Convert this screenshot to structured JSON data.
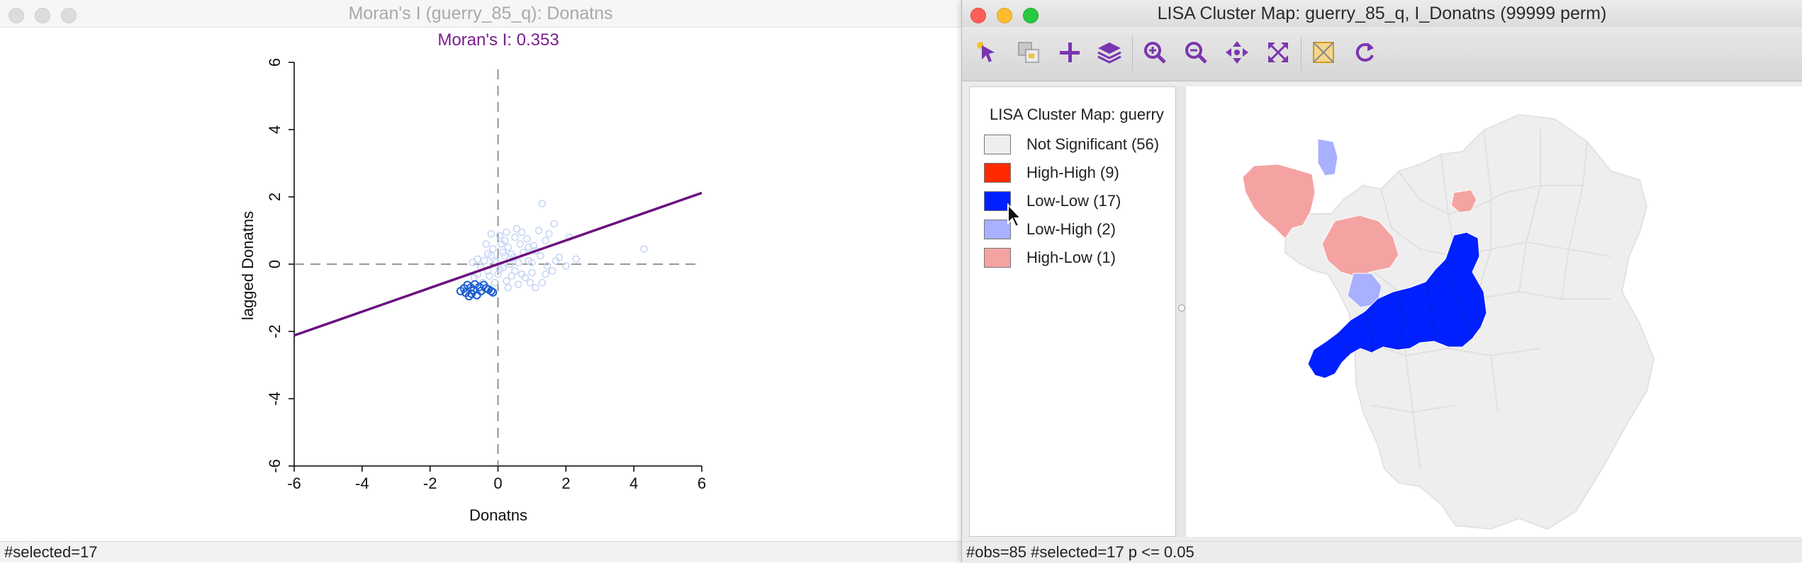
{
  "left_window": {
    "title": "Moran's I (guerry_85_q): Donatns",
    "status": "#selected=17"
  },
  "right_window": {
    "title": "LISA Cluster Map: guerry_85_q, I_Donatns (99999 perm)",
    "status": "#obs=85 #selected=17   p <= 0.05"
  },
  "toolbar": {
    "tools": [
      {
        "icon": "select-arrow-icon"
      },
      {
        "icon": "select-by-selection-icon"
      },
      {
        "icon": "crosshair-plus-icon"
      },
      {
        "icon": "layers-icon"
      },
      {
        "icon": "zoom-in-icon"
      },
      {
        "icon": "zoom-out-icon"
      },
      {
        "icon": "pan-icon"
      },
      {
        "icon": "fit-extent-icon"
      },
      {
        "icon": "selection-shape-icon"
      },
      {
        "icon": "refresh-icon"
      }
    ]
  },
  "legend": {
    "title": "LISA Cluster Map: guerry",
    "items": [
      {
        "label": "Not Significant (56)",
        "color": "#eeeeee"
      },
      {
        "label": "High-High (9)",
        "color": "#ff2a00"
      },
      {
        "label": "Low-Low (17)",
        "color": "#0020ff"
      },
      {
        "label": "Low-High (2)",
        "color": "#a9b0ff"
      },
      {
        "label": "High-Low (1)",
        "color": "#f4a3a2"
      }
    ]
  },
  "colors": {
    "regression_line": "#6b0f7f",
    "moran_title": "#7a1d8c",
    "selected_point": "#1f5fd1",
    "unselected_point": "#c7d6f5",
    "map_outline": "#e2e2e2"
  },
  "chart_data": {
    "type": "scatter",
    "title": "Moran's I: 0.353",
    "xlabel": "Donatns",
    "ylabel": "lagged Donatns",
    "xlim": [
      -6,
      6
    ],
    "ylim": [
      -6,
      6
    ],
    "xticks": [
      "-6",
      "-4",
      "-2",
      "0",
      "2",
      "4",
      "6"
    ],
    "yticks": [
      "-6",
      "-4",
      "-2",
      "0",
      "2",
      "4",
      "6"
    ],
    "regression_slope": 0.353,
    "selected_points": [
      [
        -1.1,
        -0.8
      ],
      [
        -1.0,
        -0.72
      ],
      [
        -0.95,
        -0.85
      ],
      [
        -0.9,
        -0.62
      ],
      [
        -0.85,
        -0.95
      ],
      [
        -0.8,
        -0.7
      ],
      [
        -0.78,
        -0.88
      ],
      [
        -0.72,
        -0.78
      ],
      [
        -0.68,
        -0.6
      ],
      [
        -0.62,
        -0.92
      ],
      [
        -0.55,
        -0.68
      ],
      [
        -0.5,
        -0.8
      ],
      [
        -0.42,
        -0.62
      ],
      [
        -0.35,
        -0.72
      ],
      [
        -0.28,
        -0.75
      ],
      [
        -0.2,
        -0.8
      ],
      [
        -0.15,
        -0.84
      ]
    ],
    "other_points": [
      [
        1.3,
        1.8
      ],
      [
        1.65,
        1.2
      ],
      [
        0.5,
        0.8
      ],
      [
        0.7,
        0.95
      ],
      [
        0.9,
        0.5
      ],
      [
        1.1,
        0.4
      ],
      [
        1.2,
        1.0
      ],
      [
        1.4,
        0.7
      ],
      [
        1.5,
        0.9
      ],
      [
        2.1,
        0.8
      ],
      [
        4.3,
        0.45
      ],
      [
        0.2,
        0.25
      ],
      [
        0.3,
        0.5
      ],
      [
        0.4,
        0.3
      ],
      [
        0.1,
        0.6
      ],
      [
        -0.1,
        0.1
      ],
      [
        -0.2,
        0.25
      ],
      [
        -0.3,
        0.3
      ],
      [
        -0.15,
        0.45
      ],
      [
        -0.4,
        0.1
      ],
      [
        -0.5,
        -0.1
      ],
      [
        -0.3,
        -0.2
      ],
      [
        0.0,
        -0.3
      ],
      [
        0.25,
        -0.5
      ],
      [
        0.5,
        -0.2
      ],
      [
        0.7,
        -0.3
      ],
      [
        0.8,
        -0.4
      ],
      [
        1.0,
        -0.25
      ],
      [
        1.1,
        -0.7
      ],
      [
        1.3,
        -0.55
      ],
      [
        1.4,
        -0.3
      ],
      [
        1.6,
        -0.2
      ],
      [
        1.8,
        0.2
      ],
      [
        0.9,
        0.1
      ],
      [
        0.6,
        0.05
      ],
      [
        0.35,
        0.0
      ],
      [
        -0.6,
        -0.3
      ],
      [
        -0.7,
        -0.4
      ],
      [
        -0.25,
        -0.35
      ],
      [
        0.05,
        0.85
      ],
      [
        0.25,
        0.95
      ],
      [
        -0.05,
        0.05
      ],
      [
        0.15,
        -0.1
      ],
      [
        0.45,
        0.2
      ],
      [
        -0.35,
        0.6
      ],
      [
        -0.6,
        0.15
      ],
      [
        0.75,
        0.35
      ],
      [
        1.05,
        0.55
      ],
      [
        1.7,
        0.1
      ],
      [
        2.3,
        0.15
      ],
      [
        0.55,
        1.05
      ],
      [
        -0.45,
        -0.55
      ],
      [
        0.3,
        -0.7
      ],
      [
        0.95,
        -0.55
      ],
      [
        1.25,
        0.25
      ],
      [
        0.05,
        -0.15
      ],
      [
        -0.1,
        -0.55
      ],
      [
        0.65,
        0.6
      ],
      [
        1.45,
        -0.05
      ],
      [
        0.85,
        0.75
      ],
      [
        -0.2,
        0.9
      ],
      [
        0.15,
        0.35
      ],
      [
        0.4,
        -0.35
      ],
      [
        1.0,
        0.05
      ],
      [
        -0.75,
        0.05
      ],
      [
        2.0,
        -0.05
      ],
      [
        0.2,
        0.7
      ],
      [
        0.6,
        -0.6
      ]
    ]
  }
}
